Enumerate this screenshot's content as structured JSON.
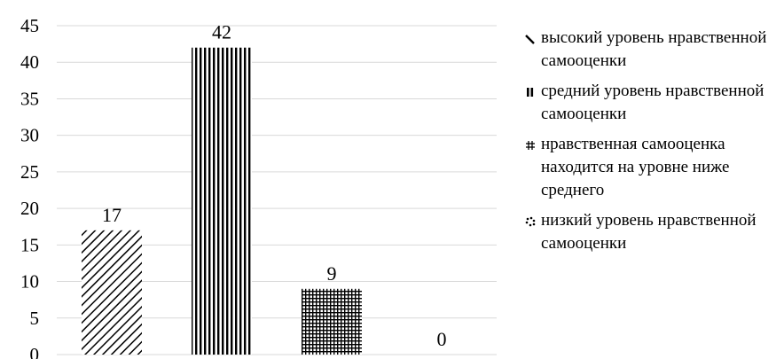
{
  "chart_data": {
    "type": "bar",
    "categories": [
      "высокий уровень нравственной самооценки",
      "средний уровень нравственной самооценки",
      "нравственная самооценка находится на уровне ниже среднего",
      "низкий уровень нравственной самооценки"
    ],
    "values": [
      17,
      42,
      9,
      0
    ],
    "data_labels": [
      "17",
      "42",
      "9",
      "0"
    ],
    "ylim": [
      0,
      45
    ],
    "yticks": [
      "0",
      "5",
      "10",
      "15",
      "20",
      "25",
      "30",
      "35",
      "40",
      "45"
    ],
    "grid": true,
    "legend_position": "right",
    "patterns": [
      "diagonal",
      "vertical",
      "grid",
      "dots"
    ],
    "colors": {
      "ink": "#000000",
      "grid": "#d9d9d9",
      "background": "#ffffff"
    }
  },
  "legend": [
    {
      "label": "высокий уровень нравственной самооценки",
      "icon": "diagonal-hatch-icon"
    },
    {
      "label": "средний уровень нравственной самооценки",
      "icon": "vertical-hatch-icon"
    },
    {
      "label": "нравственная самооценка находится на уровне ниже среднего",
      "icon": "crosshatch-icon"
    },
    {
      "label": "низкий уровень нравственной самооценки",
      "icon": "dotted-pattern-icon"
    }
  ]
}
